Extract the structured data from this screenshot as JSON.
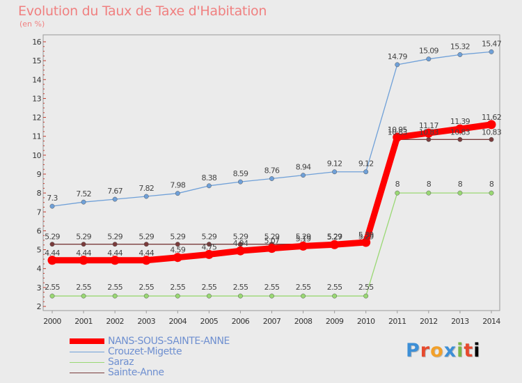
{
  "chart_data": {
    "type": "line",
    "title": "Evolution du Taux de Taxe d'Habitation",
    "subtitle": "(en %)",
    "x": [
      "2000",
      "2001",
      "2002",
      "2003",
      "2004",
      "2005",
      "2006",
      "2007",
      "2008",
      "2009",
      "2010",
      "2011",
      "2012",
      "2013",
      "2014"
    ],
    "ylim": [
      2,
      16
    ],
    "yticks": [
      2,
      3,
      4,
      5,
      6,
      7,
      8,
      9,
      10,
      11,
      12,
      13,
      14,
      15,
      16
    ],
    "grid": false,
    "legend_position": "bottom-left",
    "series": [
      {
        "name": "NANS-SOUS-SAINTE-ANNE",
        "color": "#ff0000",
        "values": [
          4.44,
          4.44,
          4.44,
          4.44,
          4.59,
          4.75,
          4.94,
          5.07,
          5.19,
          5.27,
          5.39,
          10.95,
          11.17,
          11.39,
          11.62
        ],
        "labels": [
          "4.44",
          "4.44",
          "4.44",
          "4.44",
          "4.59",
          "4.75",
          "4.94",
          "5.07",
          "5.19",
          "5.27",
          "5.39",
          "10.95",
          "11.17",
          "11.39",
          "11.62"
        ]
      },
      {
        "name": "Crouzet-Migette",
        "color": "#6fa0d8",
        "values": [
          7.3,
          7.52,
          7.67,
          7.82,
          7.98,
          8.38,
          8.59,
          8.76,
          8.94,
          9.12,
          9.12,
          14.79,
          15.09,
          15.32,
          15.47
        ],
        "labels": [
          "7.3",
          "7.52",
          "7.67",
          "7.82",
          "7.98",
          "8.38",
          "8.59",
          "8.76",
          "8.94",
          "9.12",
          "9.12",
          "14.79",
          "15.09",
          "15.32",
          "15.47"
        ]
      },
      {
        "name": "Saraz",
        "color": "#99d873",
        "values": [
          2.55,
          2.55,
          2.55,
          2.55,
          2.55,
          2.55,
          2.55,
          2.55,
          2.55,
          2.55,
          2.55,
          8,
          8,
          8,
          8
        ],
        "labels": [
          "2.55",
          "2.55",
          "2.55",
          "2.55",
          "2.55",
          "2.55",
          "2.55",
          "2.55",
          "2.55",
          "2.55",
          "2.55",
          "8",
          "8",
          "8",
          "8"
        ]
      },
      {
        "name": "Sainte-Anne",
        "color": "#7a3b3b",
        "values": [
          5.29,
          5.29,
          5.29,
          5.29,
          5.29,
          5.29,
          5.29,
          5.29,
          5.29,
          5.29,
          5.29,
          10.83,
          10.83,
          10.83,
          10.83
        ],
        "labels": [
          "5.29",
          "5.29",
          "5.29",
          "5.29",
          "5.29",
          "5.29",
          "5.29",
          "5.29",
          "5.29",
          "5.29",
          "5.29",
          "10.83",
          "10.83",
          "10.83",
          "10.83"
        ]
      }
    ]
  },
  "legend": {
    "items": [
      {
        "label": "NANS-SOUS-SAINTE-ANNE",
        "color": "#ff0000"
      },
      {
        "label": "Crouzet-Migette",
        "color": "#6fa0d8"
      },
      {
        "label": "Saraz",
        "color": "#99d873"
      },
      {
        "label": "Sainte-Anne",
        "color": "#7a3b3b"
      }
    ]
  },
  "logo": {
    "letters": [
      "P",
      "r",
      "o",
      "x",
      "i",
      "t",
      "i"
    ]
  }
}
